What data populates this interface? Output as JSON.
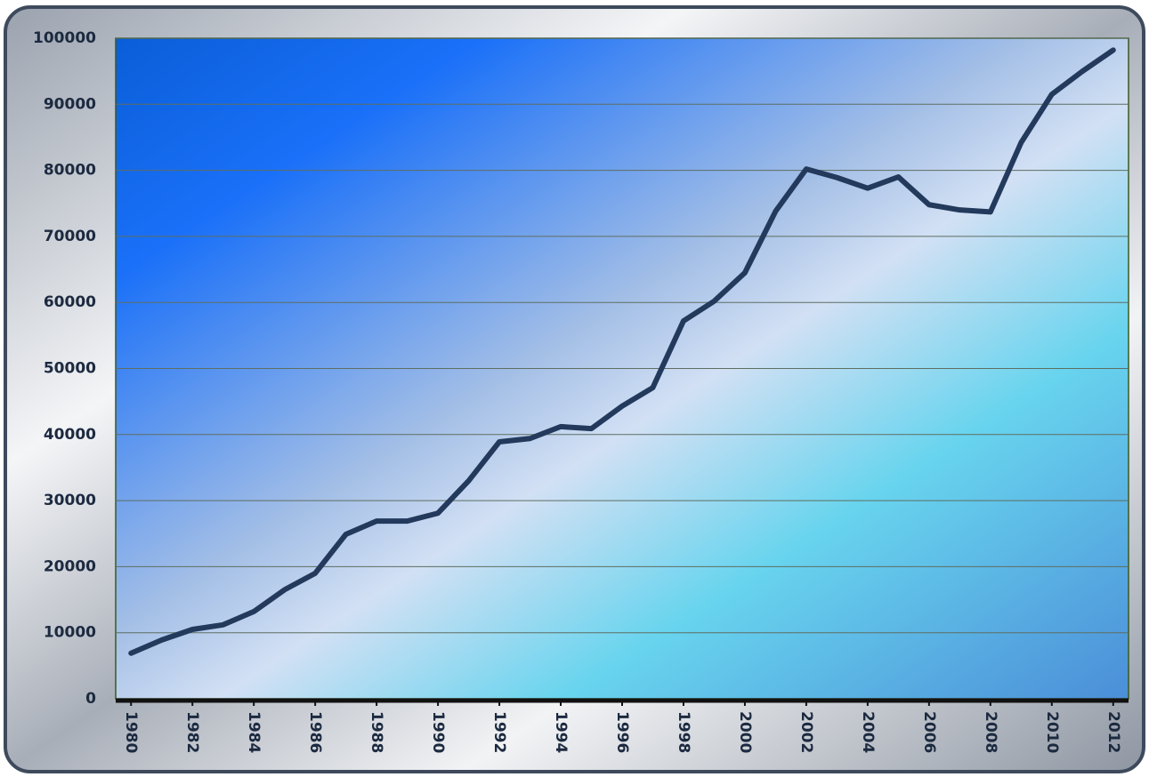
{
  "chart_data": {
    "type": "line",
    "x": [
      1980,
      1981,
      1982,
      1983,
      1984,
      1985,
      1986,
      1987,
      1988,
      1989,
      1990,
      1991,
      1992,
      1993,
      1994,
      1995,
      1996,
      1997,
      1998,
      1999,
      2000,
      2001,
      2002,
      2003,
      2004,
      2005,
      2006,
      2007,
      2008,
      2009,
      2010,
      2011,
      2012
    ],
    "values": [
      6900,
      8900,
      10500,
      11200,
      13200,
      16500,
      19000,
      24900,
      26900,
      26900,
      28100,
      33000,
      38900,
      39400,
      41200,
      40900,
      44300,
      47100,
      57200,
      60200,
      64500,
      73800,
      80200,
      78900,
      77300,
      79000,
      74800,
      74000,
      73700,
      84200,
      91500,
      95000,
      98200
    ],
    "color": "#233a5c",
    "xlim": [
      1979.5,
      2012.5
    ],
    "xticks": [
      1980,
      1982,
      1984,
      1986,
      1988,
      1990,
      1992,
      1994,
      1996,
      1998,
      2000,
      2002,
      2004,
      2006,
      2008,
      2010,
      2012
    ],
    "ylim": [
      0,
      100000
    ],
    "yticks": [
      0,
      10000,
      20000,
      30000,
      40000,
      50000,
      60000,
      70000,
      80000,
      90000,
      100000
    ],
    "grid": true
  }
}
